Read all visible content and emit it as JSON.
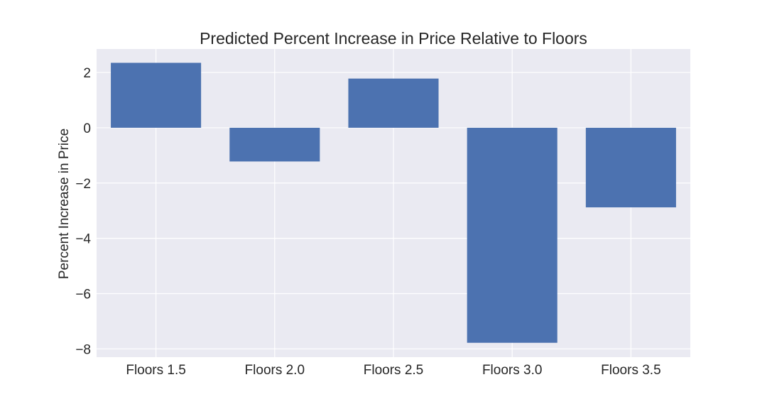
{
  "chart_data": {
    "type": "bar",
    "title": "Predicted Percent Increase in Price Relative to Floors",
    "xlabel": "",
    "ylabel": "Percent Increase in Price",
    "categories": [
      "Floors 1.5",
      "Floors 2.0",
      "Floors 2.5",
      "Floors 3.0",
      "Floors 3.5"
    ],
    "values": [
      2.35,
      -1.22,
      1.78,
      -7.78,
      -2.88
    ],
    "ylim": [
      -8.3,
      2.85
    ],
    "yticks": [
      2,
      0,
      -2,
      -4,
      -6,
      -8
    ],
    "ytick_labels": [
      "2",
      "0",
      "−2",
      "−4",
      "−6",
      "−8"
    ],
    "grid": true,
    "colors": {
      "bar": "#4c72b0",
      "plot_background": "#eaeaf2",
      "grid": "#ffffff",
      "text": "#262626"
    }
  }
}
